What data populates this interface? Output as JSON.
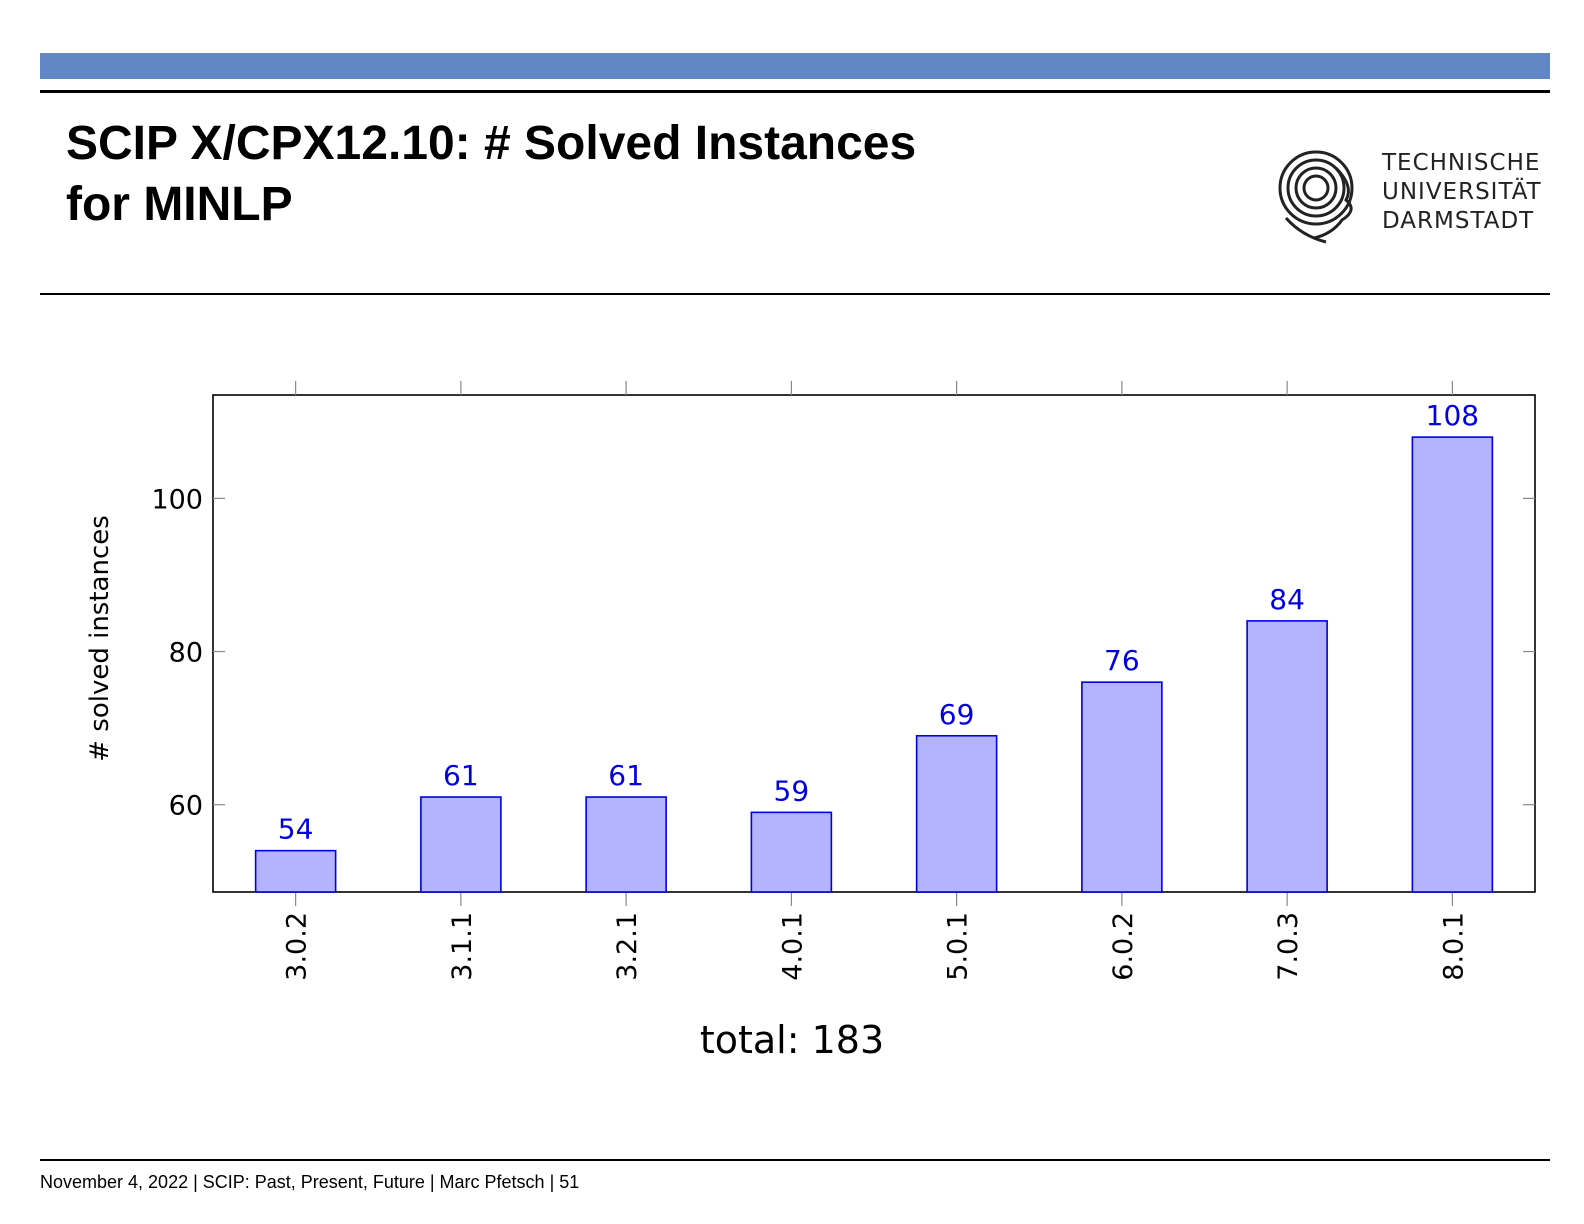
{
  "slide": {
    "title_line1": "SCIP X/CPX12.10: # Solved Instances",
    "title_line2": "for MINLP",
    "logo": {
      "line1": "TECHNISCHE",
      "line2": "UNIVERSITÄT",
      "line3": "DARMSTADT"
    },
    "footer": "November 4, 2022 | SCIP: Past, Present, Future | Marc Pfetsch | 51",
    "caption": "total: 183",
    "colors": {
      "header_bar": "#6287c6",
      "bar_fill": "#b3b3ff",
      "bar_stroke": "#0000e0",
      "label": "#0000e0"
    }
  },
  "chart_data": {
    "type": "bar",
    "categories": [
      "3.0.2",
      "3.1.1",
      "3.2.1",
      "4.0.1",
      "5.0.1",
      "6.0.2",
      "7.0.3",
      "8.0.1"
    ],
    "values": [
      54,
      61,
      61,
      59,
      69,
      76,
      84,
      108
    ],
    "ylabel": "# solved instances",
    "xlabel": "",
    "ylim": [
      48.6,
      113.5
    ],
    "yticks": [
      60,
      80,
      100
    ],
    "data_labels": [
      "54",
      "61",
      "61",
      "59",
      "69",
      "76",
      "84",
      "108"
    ],
    "grid": false
  }
}
